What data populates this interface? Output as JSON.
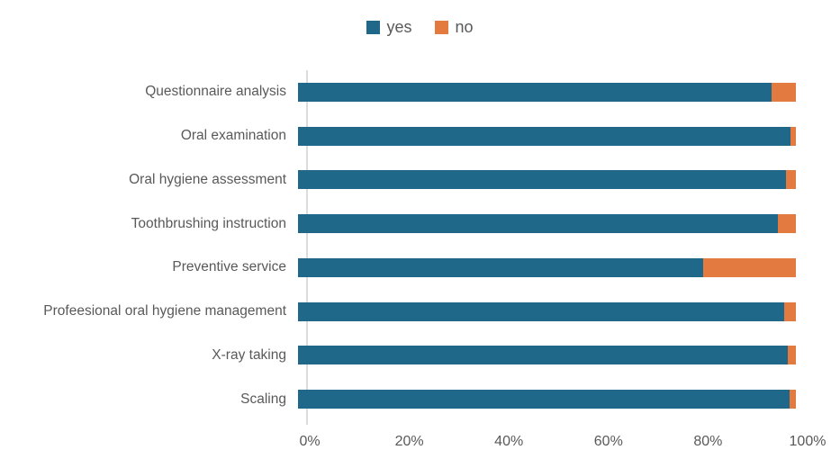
{
  "chart_data": {
    "type": "bar",
    "orientation": "horizontal",
    "stacked": true,
    "title": "",
    "xlabel": "",
    "ylabel": "",
    "xlim": [
      0,
      100
    ],
    "grid": false,
    "legend_position": "top-center",
    "categories": [
      "Questionnaire analysis",
      "Oral examination",
      "Oral hygiene assessment",
      "Toothbrushing instruction",
      "Preventive service",
      "Profeesional oral hygiene management",
      "X-ray taking",
      "Scaling"
    ],
    "series": [
      {
        "name": "yes",
        "color": "#20688A",
        "values": [
          95.2,
          99.0,
          98.0,
          96.3,
          81.4,
          97.7,
          98.4,
          98.7
        ]
      },
      {
        "name": "no",
        "color": "#E37B40",
        "values": [
          4.8,
          1.0,
          2.0,
          3.7,
          18.6,
          2.3,
          1.6,
          1.3
        ]
      }
    ],
    "x_ticks": [
      "0%",
      "20%",
      "40%",
      "60%",
      "80%",
      "100%"
    ],
    "axis_line_color": "#DCDCDC",
    "text_color": "#595959"
  }
}
